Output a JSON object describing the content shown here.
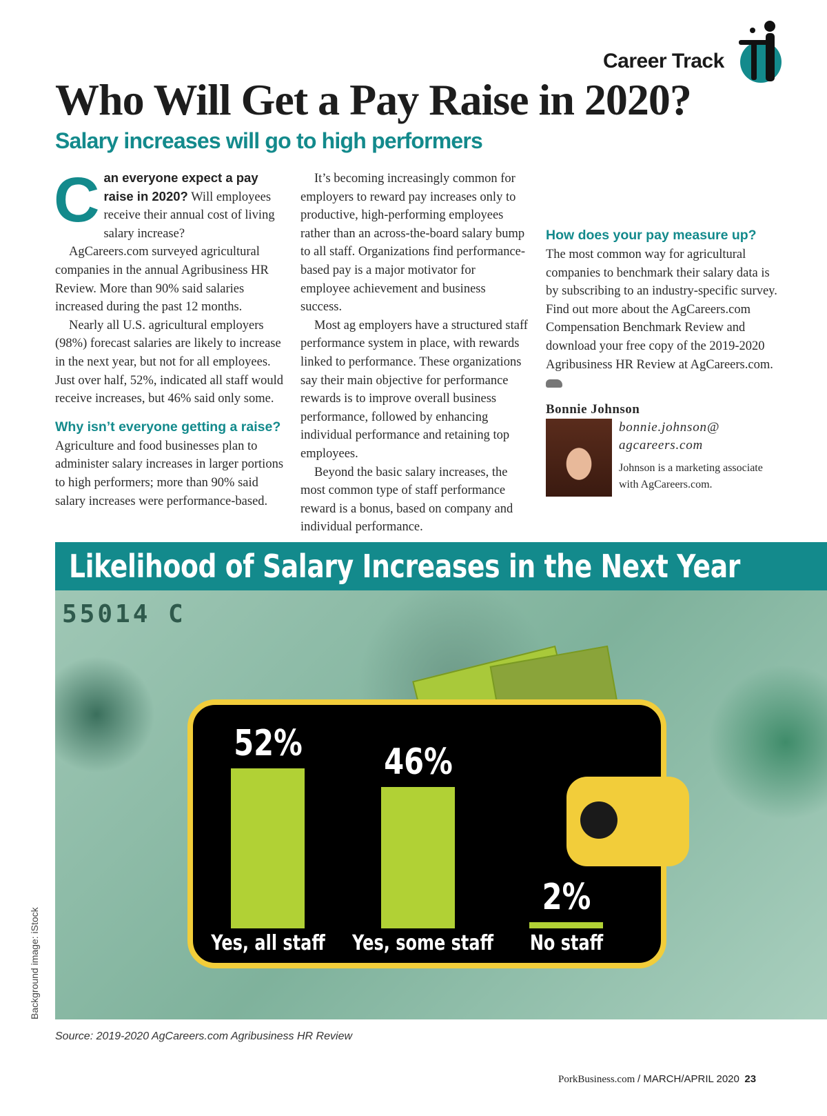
{
  "header": {
    "section": "Career Track",
    "title": "Who Will Get a Pay Raise in 2020?",
    "subtitle": "Salary increases will go to high performers"
  },
  "article": {
    "dropcap": "C",
    "lead": "an everyone expect a pay raise in 2020?",
    "p1_rest": " Will employees receive their annual cost of living salary increase?",
    "p2": "AgCareers.com surveyed agricultural companies in the annual Agribusiness HR Review. More than 90% said salaries increased during the past 12 months.",
    "p3": "Nearly all U.S. agricultural employers (98%) forecast salaries are likely to increase in the next year, but not for all employees. Just over half, 52%, indicated all staff would receive increases, but 46% said only some.",
    "h1": "Why isn’t everyone getting a raise?",
    "p4": "Agriculture and food businesses plan to administer salary increases in larger portions to high performers; more than 90% said salary increases were performance-based.",
    "p5": "It’s becoming increasingly common for employers to reward pay increases only to productive, high-performing employees rather than an across-the-board salary bump to all staff. Organizations find performance-based pay is a major motivator for employee achievement and business success.",
    "p6": "Most ag employers have a structured staff performance system in place, with rewards linked to performance. These organizations say their main objective for performance rewards is to improve overall business performance, followed by enhancing individual performance and retaining top employees.",
    "p7": "Beyond the basic salary increases, the most common type of staff performance reward is a bonus, based on company and individual performance.",
    "h2": "How does your pay measure up?",
    "p8": "The most common way for agricultural companies to benchmark their salary data is by subscribing to an industry-specific survey. Find out more about the AgCareers.com Compensation Benchmark Review and download your free copy of the 2019-2020 Agribusiness HR Review at AgCareers.com.",
    "end_icon": "pig-icon"
  },
  "author": {
    "name": "Bonnie Johnson",
    "email_1": "bonnie.johnson@",
    "email_2": "agcareers.com",
    "bio": "Johnson is a marketing associate with AgCareers.com."
  },
  "chart_data": {
    "type": "bar",
    "title": "Likelihood of Salary Increases in the Next Year",
    "categories": [
      "Yes, all staff",
      "Yes, some staff",
      "No staff"
    ],
    "values": [
      52,
      46,
      2
    ],
    "labels": [
      "52%",
      "46%",
      "2%"
    ],
    "ylim": [
      0,
      52
    ],
    "bar_color": "#b1d135",
    "source": "Source: 2019-2020 AgCareers.com Agribusiness HR Review",
    "credit": "Background image: iStock",
    "serial": "55014 C"
  },
  "footer": {
    "site": "PorkBusiness.com",
    "issue": "/ MARCH/APRIL 2020",
    "page": "23"
  },
  "colors": {
    "accent": "#138a8c",
    "wallet_trim": "#f2cd3a"
  }
}
